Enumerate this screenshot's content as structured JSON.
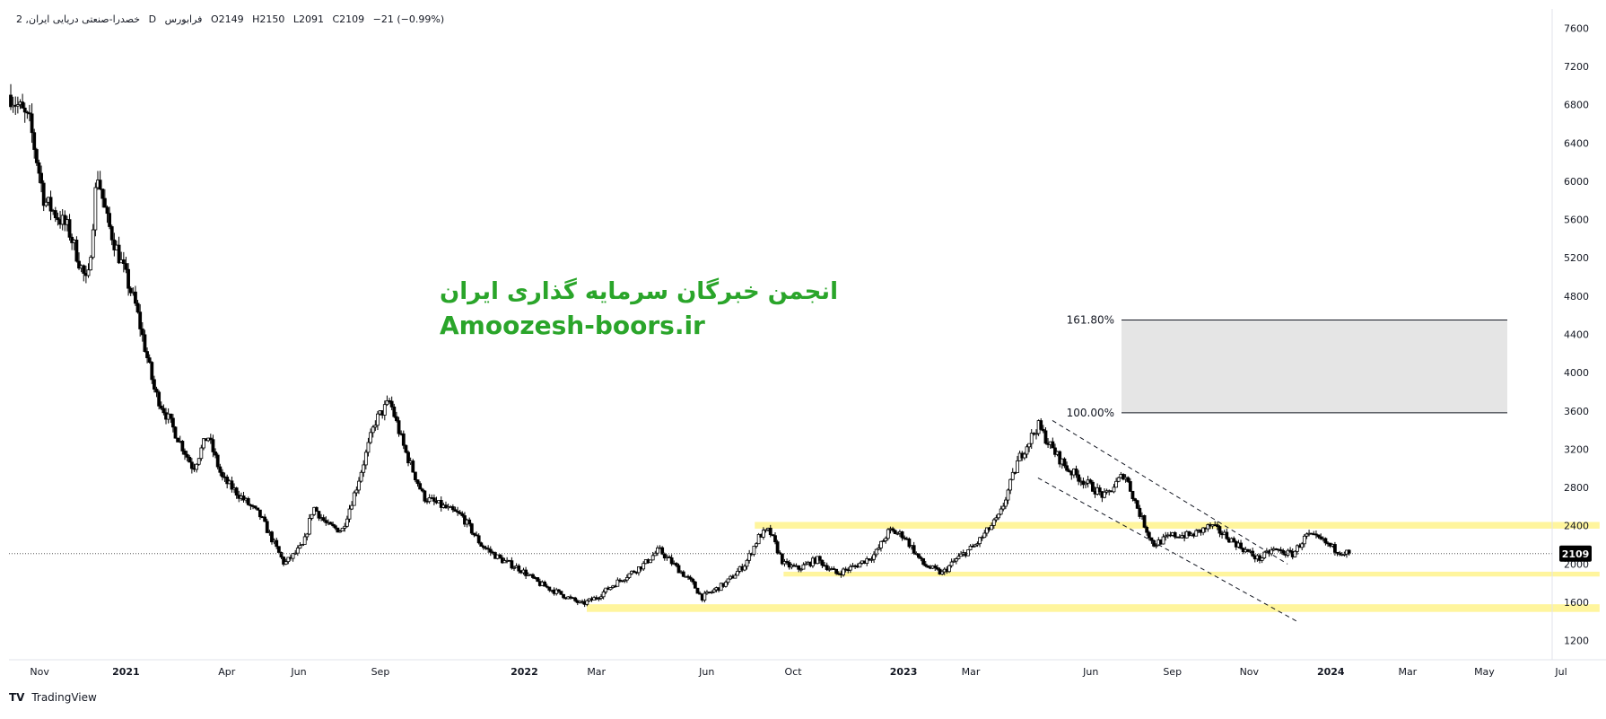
{
  "header": {
    "symbol": "خصدرا-صنعتی دریایی ایران, 2",
    "interval": "D",
    "exchange": "فرابورس",
    "open": "O2149",
    "high": "H2150",
    "low": "L2091",
    "close": "C2109",
    "change": "−21 (−0.99%)"
  },
  "watermark": {
    "line1": "انجمن خبرگان سرمایه گذاری ایران",
    "line2": "Amoozesh-boors.ir",
    "color": "#2aa52a"
  },
  "branding": {
    "logo": "TV",
    "name": "TradingView"
  },
  "colors": {
    "up": "#ffffff",
    "down": "#000000",
    "wick": "#000000",
    "zone": "#fff59d",
    "fib_box": "#e5e5e5"
  },
  "chart_data": {
    "type": "candlestick",
    "ylim": [
      1000,
      7800
    ],
    "yticks": [
      1200,
      1600,
      2000,
      2400,
      2800,
      3200,
      3600,
      4000,
      4400,
      4800,
      5200,
      5600,
      6000,
      6400,
      6800,
      7200,
      7600
    ],
    "xticks": [
      {
        "label": "Nov",
        "t": 0.03,
        "bold": false
      },
      {
        "label": "2021",
        "t": 0.12,
        "bold": true
      },
      {
        "label": "Apr",
        "t": 0.225,
        "bold": false
      },
      {
        "label": "Jun",
        "t": 0.3,
        "bold": false
      },
      {
        "label": "Sep",
        "t": 0.385,
        "bold": false
      },
      {
        "label": "2022",
        "t": 0.535,
        "bold": true
      },
      {
        "label": "Mar",
        "t": 0.61,
        "bold": false
      },
      {
        "label": "Jun",
        "t": 0.725,
        "bold": false
      },
      {
        "label": "Oct",
        "t": 0.815,
        "bold": false
      },
      {
        "label": "2023",
        "t": 0.93,
        "bold": true
      },
      {
        "label": "Mar",
        "t": 1.0,
        "bold": false
      },
      {
        "label": "Jun",
        "t": 1.125,
        "bold": false
      },
      {
        "label": "Sep",
        "t": 1.21,
        "bold": false
      },
      {
        "label": "Nov",
        "t": 1.29,
        "bold": false
      },
      {
        "label": "2024",
        "t": 1.375,
        "bold": true
      },
      {
        "label": "Mar",
        "t": 1.455,
        "bold": false
      },
      {
        "label": "May",
        "t": 1.535,
        "bold": false
      },
      {
        "label": "Jul",
        "t": 1.615,
        "bold": false
      }
    ],
    "price_path": [
      [
        0.0,
        6900
      ],
      [
        0.02,
        6600
      ],
      [
        0.035,
        5800
      ],
      [
        0.06,
        5500
      ],
      [
        0.08,
        4900
      ],
      [
        0.09,
        6100
      ],
      [
        0.1,
        5600
      ],
      [
        0.13,
        4700
      ],
      [
        0.15,
        3800
      ],
      [
        0.17,
        3400
      ],
      [
        0.19,
        3000
      ],
      [
        0.205,
        3350
      ],
      [
        0.22,
        2900
      ],
      [
        0.24,
        2700
      ],
      [
        0.26,
        2500
      ],
      [
        0.285,
        2000
      ],
      [
        0.305,
        2200
      ],
      [
        0.315,
        2600
      ],
      [
        0.33,
        2400
      ],
      [
        0.345,
        2350
      ],
      [
        0.36,
        2800
      ],
      [
        0.38,
        3500
      ],
      [
        0.395,
        3700
      ],
      [
        0.41,
        3200
      ],
      [
        0.43,
        2700
      ],
      [
        0.45,
        2600
      ],
      [
        0.47,
        2500
      ],
      [
        0.49,
        2200
      ],
      [
        0.51,
        2050
      ],
      [
        0.53,
        1950
      ],
      [
        0.55,
        1800
      ],
      [
        0.57,
        1700
      ],
      [
        0.595,
        1580
      ],
      [
        0.61,
        1650
      ],
      [
        0.63,
        1800
      ],
      [
        0.66,
        2000
      ],
      [
        0.675,
        2150
      ],
      [
        0.69,
        2000
      ],
      [
        0.71,
        1800
      ],
      [
        0.72,
        1650
      ],
      [
        0.745,
        1800
      ],
      [
        0.765,
        2000
      ],
      [
        0.78,
        2300
      ],
      [
        0.79,
        2350
      ],
      [
        0.805,
        2000
      ],
      [
        0.82,
        1950
      ],
      [
        0.84,
        2050
      ],
      [
        0.86,
        1900
      ],
      [
        0.88,
        1980
      ],
      [
        0.9,
        2100
      ],
      [
        0.915,
        2350
      ],
      [
        0.93,
        2300
      ],
      [
        0.95,
        2000
      ],
      [
        0.97,
        1900
      ],
      [
        0.985,
        2050
      ],
      [
        1.005,
        2200
      ],
      [
        1.03,
        2500
      ],
      [
        1.05,
        3100
      ],
      [
        1.07,
        3450
      ],
      [
        1.085,
        3200
      ],
      [
        1.1,
        3000
      ],
      [
        1.12,
        2850
      ],
      [
        1.14,
        2700
      ],
      [
        1.16,
        2950
      ],
      [
        1.175,
        2550
      ],
      [
        1.19,
        2200
      ],
      [
        1.21,
        2300
      ],
      [
        1.23,
        2300
      ],
      [
        1.25,
        2400
      ],
      [
        1.265,
        2300
      ],
      [
        1.285,
        2150
      ],
      [
        1.3,
        2050
      ],
      [
        1.315,
        2150
      ],
      [
        1.335,
        2100
      ],
      [
        1.35,
        2300
      ],
      [
        1.365,
        2250
      ],
      [
        1.38,
        2150
      ],
      [
        1.395,
        2109
      ]
    ],
    "last_price": 2109,
    "fib_levels": [
      {
        "label": "161.80%",
        "price": 4550
      },
      {
        "label": "100.00%",
        "price": 3580
      }
    ],
    "support_zones": [
      {
        "price_top": 2440,
        "price_bottom": 2370,
        "t_start": 0.775,
        "t_end": 1.655
      },
      {
        "price_top": 1920,
        "price_bottom": 1870,
        "t_start": 0.805,
        "t_end": 1.655
      },
      {
        "price_top": 1580,
        "price_bottom": 1500,
        "t_start": 0.6,
        "t_end": 1.655
      }
    ],
    "trend_channel": [
      {
        "t1": 1.085,
        "p1": 3500,
        "t2": 1.33,
        "p2": 2000
      },
      {
        "t1": 1.07,
        "p1": 2900,
        "t2": 1.34,
        "p2": 1400
      }
    ]
  }
}
